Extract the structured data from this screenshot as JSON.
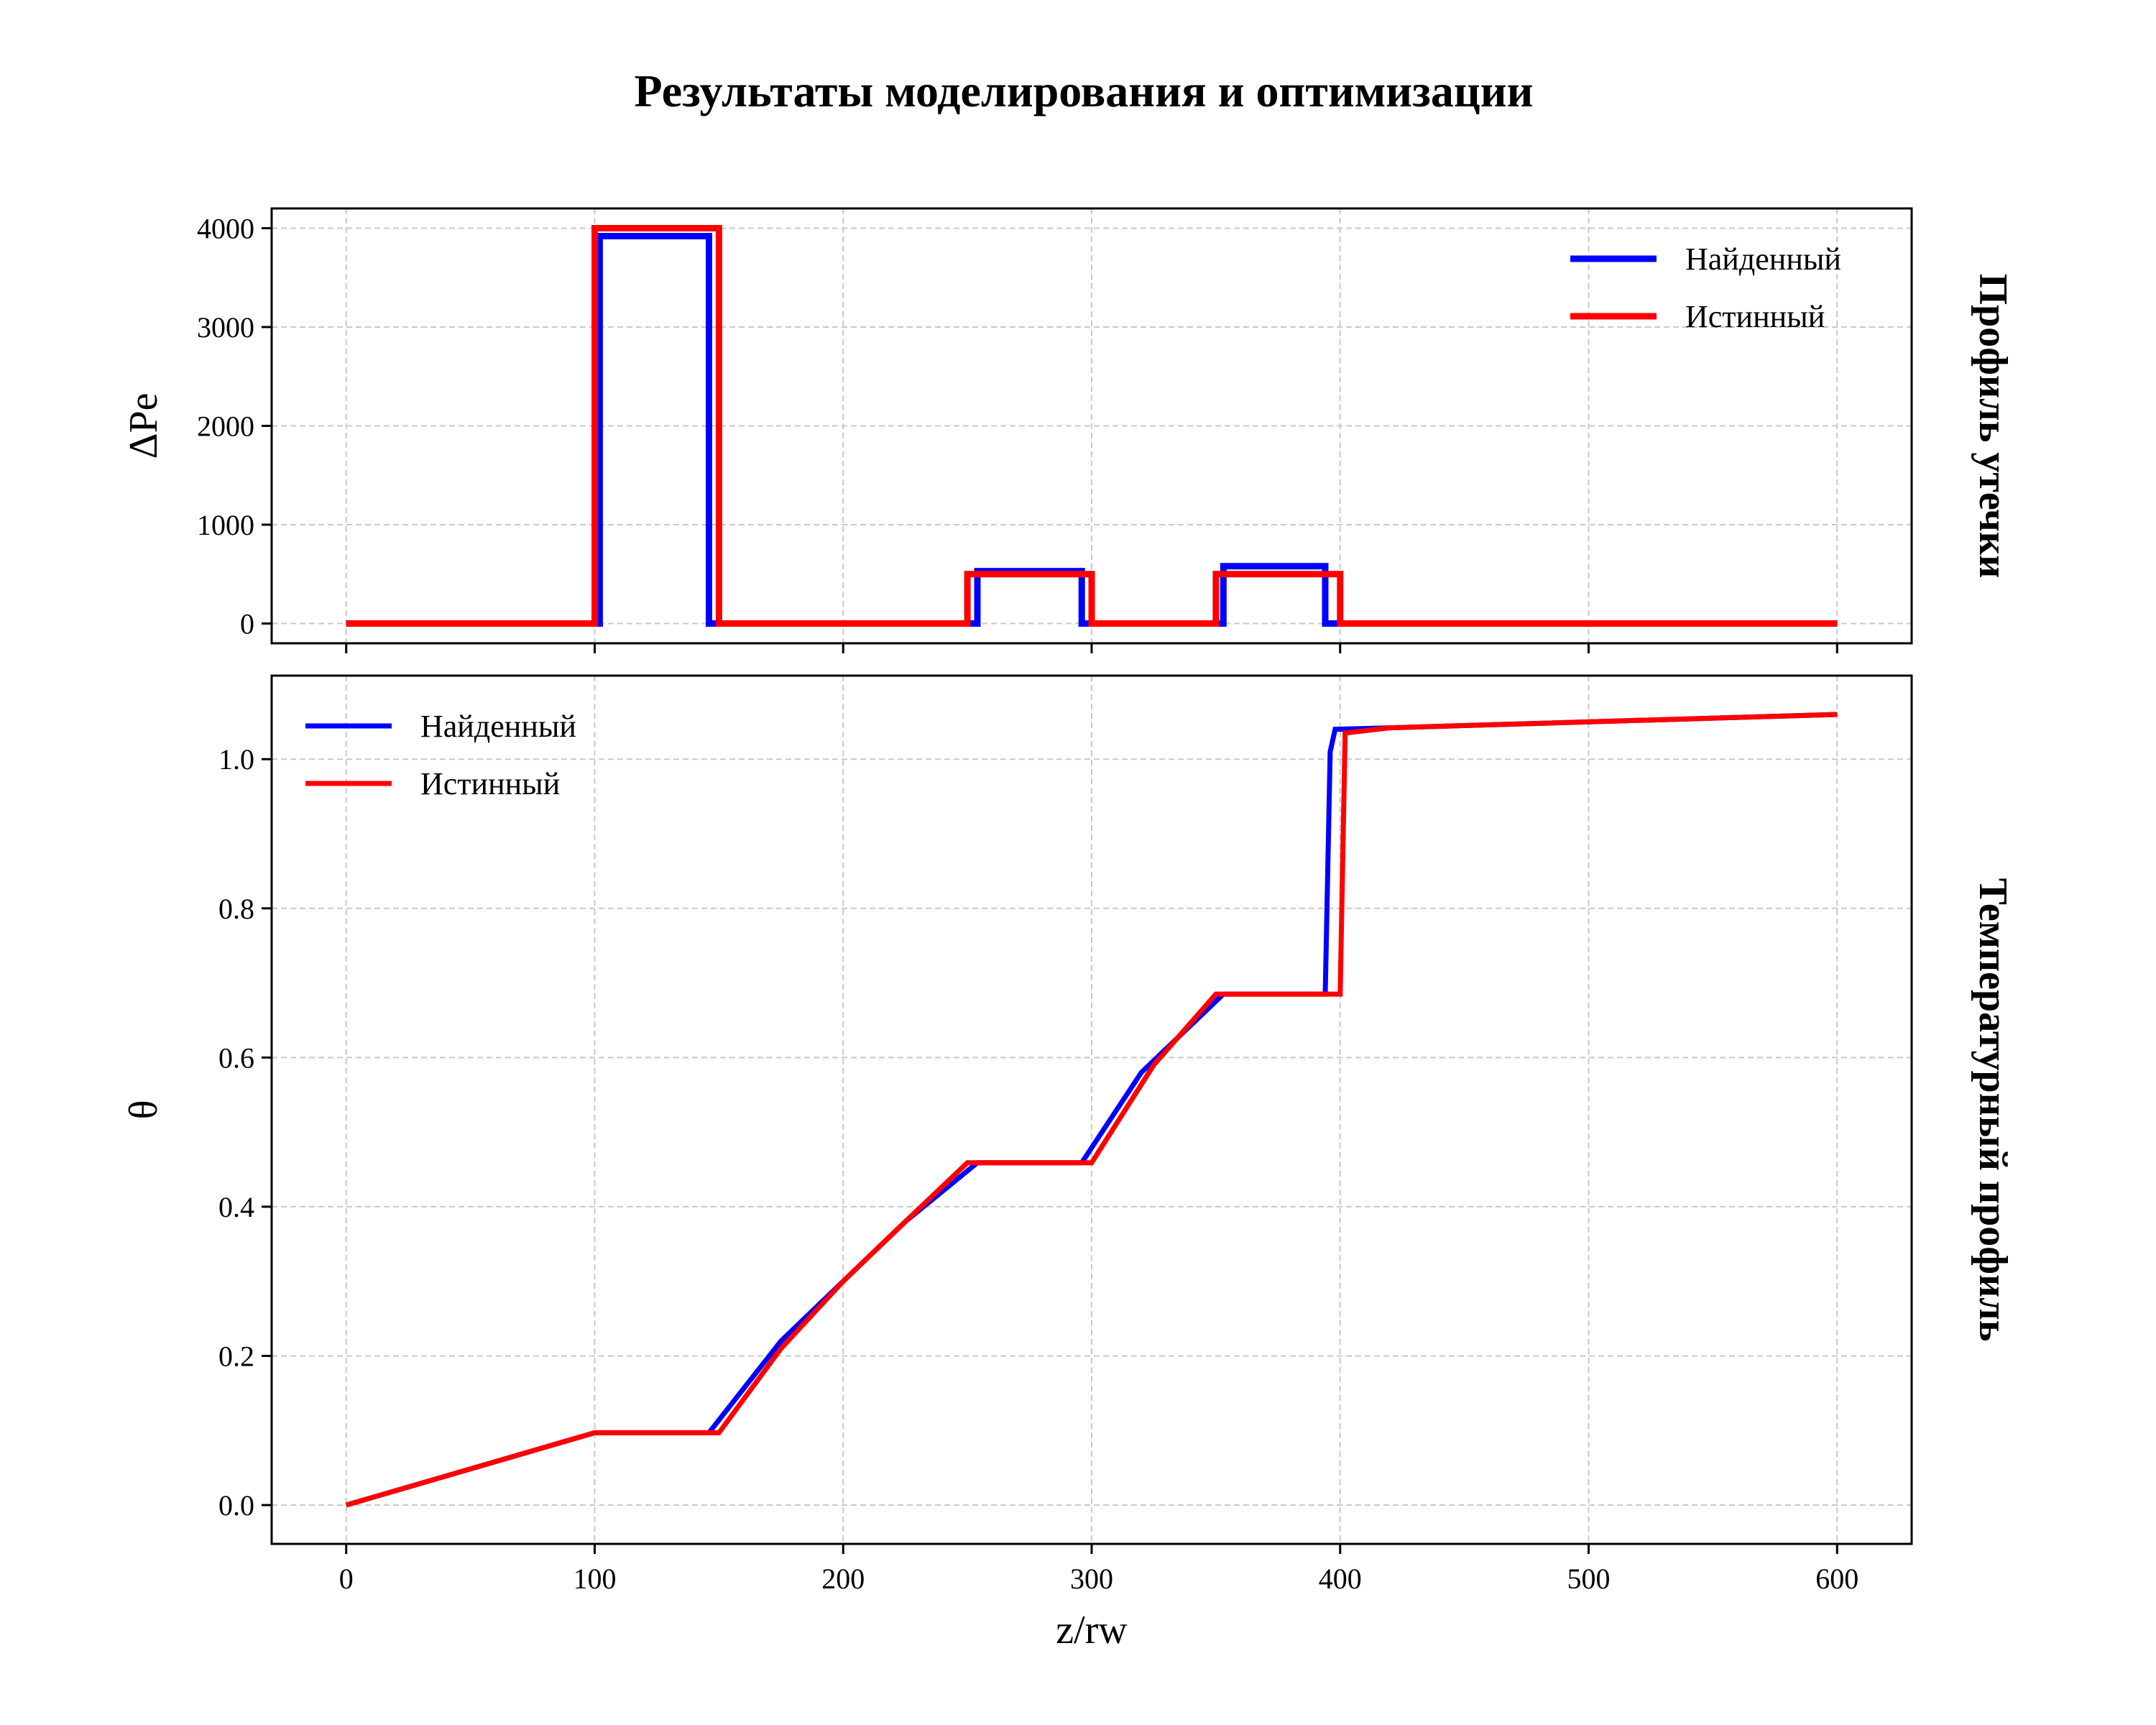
{
  "title": "Результаты моделирования и оптимизации",
  "colors": {
    "found": "#0000ff",
    "true": "#ff0000",
    "grid": "#c8c8c8",
    "axes": "#000000"
  },
  "chart_data": [
    {
      "type": "line",
      "side_title": "Профиль утечки",
      "xlabel": "",
      "ylabel": "ΔPe",
      "xlim": [
        -30,
        630
      ],
      "ylim": [
        -200,
        4200
      ],
      "xticks": [
        0,
        100,
        200,
        300,
        400,
        500,
        600
      ],
      "xtick_labels": [
        "",
        "",
        "",
        "",
        "",
        "",
        ""
      ],
      "yticks": [
        0,
        1000,
        2000,
        3000,
        4000
      ],
      "ytick_labels": [
        "0",
        "1000",
        "2000",
        "3000",
        "4000"
      ],
      "grid": true,
      "legend": {
        "position": "top-right",
        "labels": [
          "Найденный",
          "Истинный"
        ]
      },
      "series": [
        {
          "name": "Найденный",
          "color_key": "found",
          "x": [
            0,
            102,
            102,
            146,
            146,
            254,
            254,
            296,
            296,
            353,
            353,
            394,
            394,
            600
          ],
          "y": [
            0,
            0,
            3920,
            3920,
            0,
            0,
            530,
            530,
            0,
            0,
            580,
            580,
            0,
            0
          ]
        },
        {
          "name": "Истинный",
          "color_key": "true",
          "x": [
            0,
            100,
            100,
            150,
            150,
            250,
            250,
            300,
            300,
            350,
            350,
            400,
            400,
            600
          ],
          "y": [
            0,
            0,
            4000,
            4000,
            0,
            0,
            500,
            500,
            0,
            0,
            500,
            500,
            0,
            0
          ]
        }
      ]
    },
    {
      "type": "line",
      "side_title": "Температурный профиль",
      "xlabel": "z/rw",
      "ylabel": "θ",
      "xlim": [
        -30,
        630
      ],
      "ylim": [
        -0.052,
        1.112
      ],
      "xticks": [
        0,
        100,
        200,
        300,
        400,
        500,
        600
      ],
      "xtick_labels": [
        "0",
        "100",
        "200",
        "300",
        "400",
        "500",
        "600"
      ],
      "yticks": [
        0,
        0.2,
        0.4,
        0.6,
        0.8,
        1.0
      ],
      "ytick_labels": [
        "0.0",
        "0.2",
        "0.4",
        "0.6",
        "0.8",
        "1.0"
      ],
      "grid": true,
      "legend": {
        "position": "top-left",
        "labels": [
          "Найденный",
          "Истинный"
        ]
      },
      "series": [
        {
          "name": "Найденный",
          "color_key": "found",
          "x": [
            0,
            100,
            146,
            175,
            200,
            225,
            254,
            296,
            320,
            353,
            394,
            396,
            398,
            420,
            600
          ],
          "y": [
            0,
            0.097,
            0.097,
            0.22,
            0.3,
            0.38,
            0.459,
            0.459,
            0.58,
            0.685,
            0.685,
            1.01,
            1.04,
            1.042,
            1.06
          ]
        },
        {
          "name": "Истинный",
          "color_key": "true",
          "x": [
            0,
            100,
            150,
            175,
            200,
            225,
            250,
            300,
            325,
            350,
            400,
            402,
            420,
            600
          ],
          "y": [
            0,
            0.097,
            0.097,
            0.21,
            0.3,
            0.38,
            0.459,
            0.459,
            0.59,
            0.685,
            0.685,
            1.035,
            1.042,
            1.06
          ]
        }
      ]
    }
  ]
}
